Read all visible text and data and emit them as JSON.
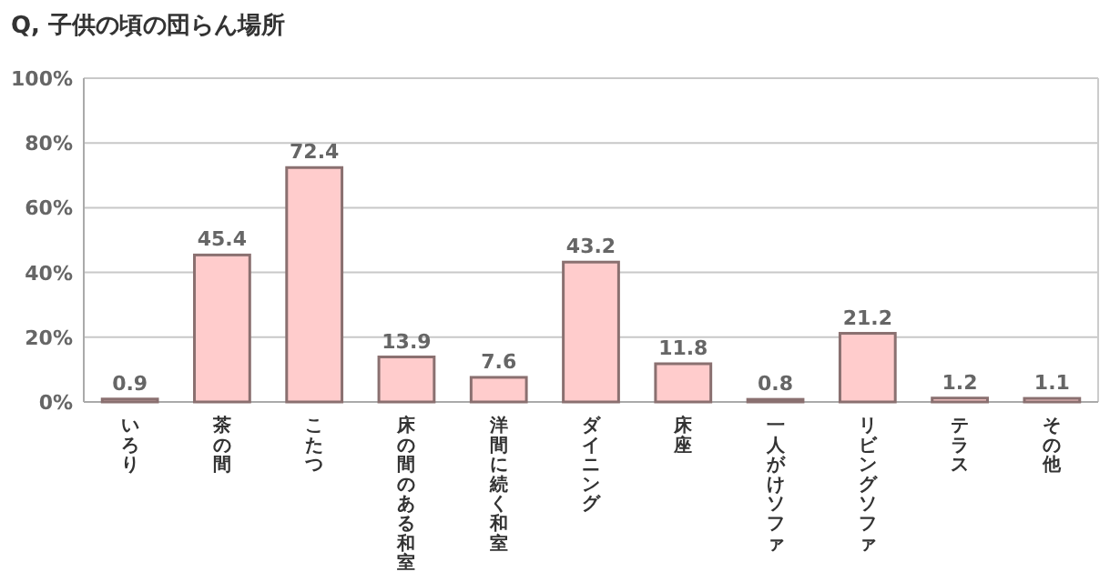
{
  "chart_data": {
    "type": "bar",
    "title": "Q, 子供の頃の団らん場所",
    "categories": [
      "いろり",
      "茶の間",
      "こたつ",
      "床の間のある和室",
      "洋間に続く和室",
      "ダイニング",
      "床座",
      "一人がけソファ",
      "リビングソファ",
      "テラス",
      "その他"
    ],
    "values": [
      0.9,
      45.4,
      72.4,
      13.9,
      7.6,
      43.2,
      11.8,
      0.8,
      21.2,
      1.2,
      1.1
    ],
    "color": "#ffcccc",
    "ylim": [
      0,
      100
    ],
    "yticks": [
      {
        "value": 0,
        "label": "0%"
      },
      {
        "value": 20,
        "label": "20%"
      },
      {
        "value": 40,
        "label": "40%"
      },
      {
        "value": 60,
        "label": "60%"
      },
      {
        "value": 80,
        "label": "80%"
      },
      {
        "value": 100,
        "label": "100%"
      }
    ],
    "grid": "y",
    "data_labels": true
  }
}
